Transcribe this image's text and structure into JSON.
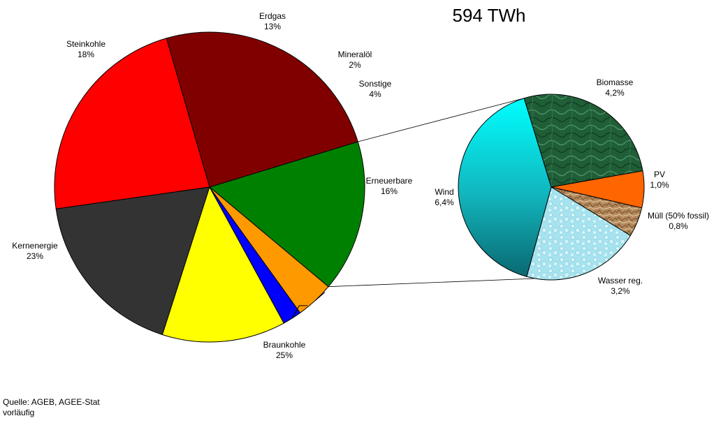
{
  "chart_data": [
    {
      "type": "pie",
      "title": "594 TWh",
      "slices": [
        {
          "label": "Erneuerbare",
          "value": 16,
          "display": "16%",
          "color": "#008000"
        },
        {
          "label": "Braunkohle",
          "value": 25,
          "display": "25%",
          "color": "#800000"
        },
        {
          "label": "Kernenergie",
          "value": 23,
          "display": "23%",
          "color": "#ff0000"
        },
        {
          "label": "Steinkohle",
          "value": 18,
          "display": "18%",
          "color": "#333333"
        },
        {
          "label": "Erdgas",
          "value": 13,
          "display": "13%",
          "color": "#ffff00"
        },
        {
          "label": "Mineralöl",
          "value": 2,
          "display": "2%",
          "color": "#0000ff"
        },
        {
          "label": "Sonstige",
          "value": 4,
          "display": "4%",
          "color": "#ff9900"
        }
      ]
    },
    {
      "type": "pie",
      "breakdown_of": "Erneuerbare",
      "slices": [
        {
          "label": "Biomasse",
          "value": 4.2,
          "display": "4,2%",
          "color": "#1e5c36"
        },
        {
          "label": "PV",
          "value": 1.0,
          "display": "1,0%",
          "color": "#ff6600"
        },
        {
          "label": "Müll (50% fossil)",
          "value": 0.8,
          "display": "0,8%",
          "color": "#b0875a"
        },
        {
          "label": "Wasser reg.",
          "value": 3.2,
          "display": "3,2%",
          "color": "#a6e4ee"
        },
        {
          "label": "Wind",
          "value": 6.4,
          "display": "6,4%",
          "color": "#00d4d8"
        }
      ]
    }
  ],
  "source": {
    "line1": "Quelle: AGEB, AGEE-Stat",
    "line2": "vorläufig"
  }
}
